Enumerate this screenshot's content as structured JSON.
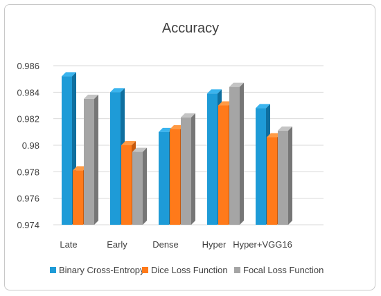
{
  "chart_data": {
    "type": "bar",
    "title": "Accuracy",
    "xlabel": "",
    "ylabel": "",
    "categories": [
      "Late",
      "Early",
      "Dense",
      "Hyper",
      "Hyper+VGG16"
    ],
    "series": [
      {
        "name": "Binary Cross-Entropy",
        "values": [
          0.9852,
          0.984,
          0.981,
          0.9839,
          0.9828
        ]
      },
      {
        "name": "Dice Loss Function",
        "values": [
          0.9781,
          0.98,
          0.9812,
          0.983,
          0.9806
        ]
      },
      {
        "name": "Focal Loss Function",
        "values": [
          0.9835,
          0.9795,
          0.9821,
          0.9844,
          0.9811
        ]
      }
    ],
    "ylim": [
      0.974,
      0.986
    ],
    "yticks": [
      "0.974",
      "0.976",
      "0.978",
      "0.98",
      "0.982",
      "0.984",
      "0.986"
    ],
    "grid": true,
    "legend_position": "bottom",
    "colors": {
      "series_front": [
        "#1E9BD7",
        "#FF7A1A",
        "#A5A5A5"
      ],
      "series_side": [
        "#0F6F9F",
        "#C75A0E",
        "#767676"
      ],
      "series_top": [
        "#3AB4EE",
        "#FF9A45",
        "#C4C4C4"
      ],
      "grid": "#d9d9d9",
      "text": "#404040"
    }
  }
}
